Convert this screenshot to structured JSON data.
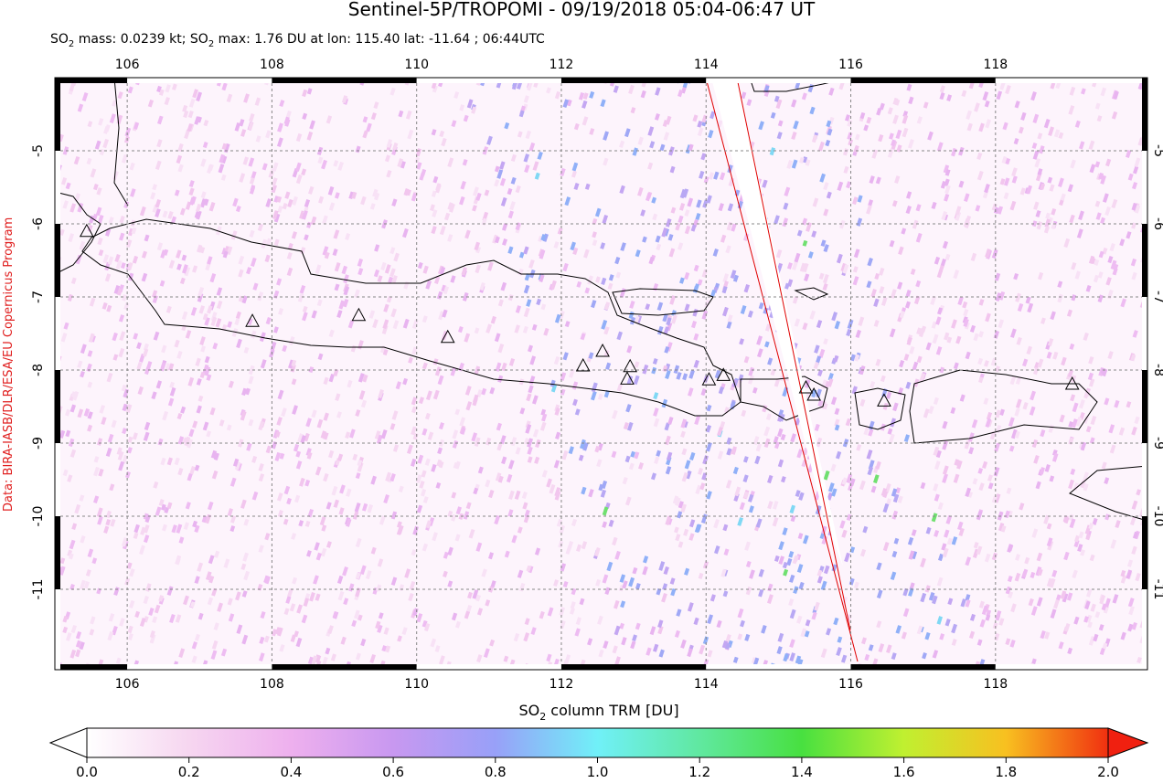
{
  "header": {
    "title": "Sentinel-5P/TROPOMI - 09/19/2018 05:04-06:47 UT",
    "subtitle": [
      "SO",
      "2",
      " mass: 0.0239 kt; SO",
      "2",
      " max: 1.76 DU at lon: 115.40 lat: -11.64 ; 06:44UTC"
    ],
    "credit": "Data: BIRA-IASB/DLR/ESA/EU Copernicus Program"
  },
  "map": {
    "xlim": [
      105,
      120.1
    ],
    "ylim": [
      -12.1,
      -4
    ],
    "xticks": [
      106,
      108,
      110,
      112,
      114,
      116,
      118
    ],
    "yticks": [
      -5,
      -6,
      -7,
      -8,
      -9,
      -10,
      -11
    ],
    "grid": true,
    "volcanoes": {
      "lon": [
        105.44,
        107.73,
        109.2,
        110.43,
        112.3,
        112.57,
        112.95,
        112.91,
        114.04,
        114.24,
        115.38,
        115.49,
        116.46,
        119.06
      ],
      "lat": [
        -6.11,
        -7.34,
        -7.26,
        -7.56,
        -7.95,
        -7.75,
        -7.96,
        -8.13,
        -8.14,
        -8.08,
        -8.25,
        -8.35,
        -8.43,
        -8.2
      ]
    }
  },
  "colorbar": {
    "label": [
      "SO",
      "2",
      " column TRM [DU]"
    ],
    "lim": [
      0,
      2
    ],
    "ticks": [
      {
        "value": 0,
        "label": "0.0"
      },
      {
        "value": 0.2,
        "label": "0.2"
      },
      {
        "value": 0.4,
        "label": "0.4"
      },
      {
        "value": 0.6,
        "label": "0.6"
      },
      {
        "value": 0.8,
        "label": "0.8"
      },
      {
        "value": 1,
        "label": "1.0"
      },
      {
        "value": 1.2,
        "label": "1.2"
      },
      {
        "value": 1.4,
        "label": "1.4"
      },
      {
        "value": 1.6,
        "label": "1.6"
      },
      {
        "value": 1.8,
        "label": "1.8"
      },
      {
        "value": 2,
        "label": "2.0"
      }
    ]
  }
}
